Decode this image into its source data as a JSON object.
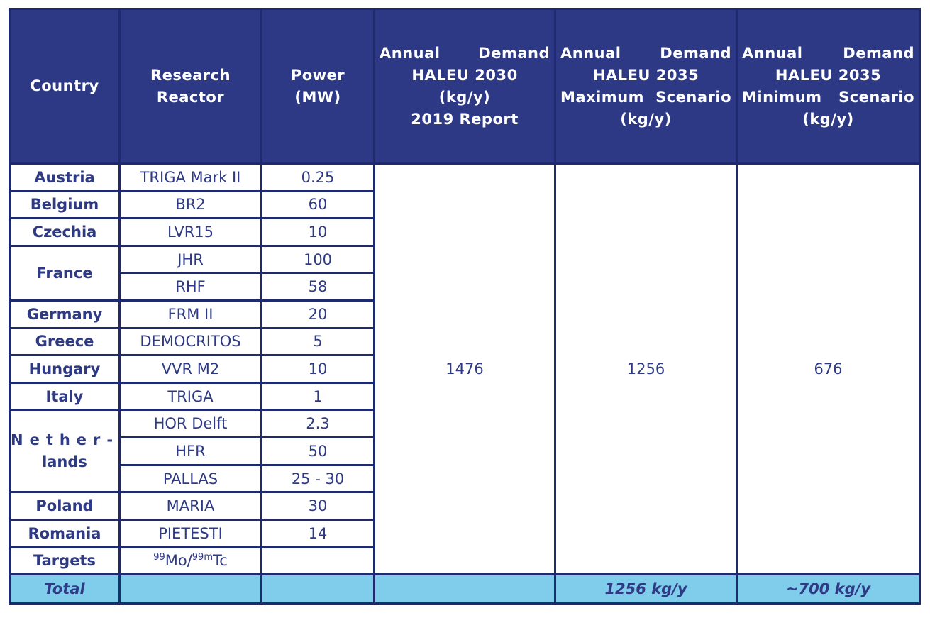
{
  "table": {
    "headers": {
      "country": "Country",
      "reactor": [
        "Research",
        "Reactor"
      ],
      "power": [
        "Power",
        "(MW)"
      ],
      "d2030": [
        "Annual Demand",
        "HALEU 2030",
        "(kg/y)",
        "2019 Report"
      ],
      "d2035max": [
        "Annual Demand",
        "HALEU 2035",
        "Maximum Scenario",
        "(kg/y)"
      ],
      "d2035min": [
        "Annual Demand",
        "HALEU 2035",
        "Minimum Scenario",
        "(kg/y)"
      ]
    },
    "rows": [
      {
        "country": "Austria",
        "reactor": "TRIGA Mark II",
        "power": "0.25"
      },
      {
        "country": "Belgium",
        "reactor": "BR2",
        "power": "60"
      },
      {
        "country": "Czechia",
        "reactor": "LVR15",
        "power": "10"
      },
      {
        "country": "France",
        "reactor": "JHR",
        "power": "100"
      },
      {
        "country": "",
        "reactor": "RHF",
        "power": "58"
      },
      {
        "country": "Germany",
        "reactor": "FRM II",
        "power": "20"
      },
      {
        "country": "Greece",
        "reactor": "DEMOCRITOS",
        "power": "5"
      },
      {
        "country": "Hungary",
        "reactor": "VVR M2",
        "power": "10"
      },
      {
        "country": "Italy",
        "reactor": "TRIGA",
        "power": "1"
      },
      {
        "country": "Nether-",
        "country_line2": "lands",
        "reactor": "HOR Delft",
        "power": "2.3"
      },
      {
        "country": "",
        "reactor": "HFR",
        "power": "50"
      },
      {
        "country": "",
        "reactor": "PALLAS",
        "power": "25 - 30"
      },
      {
        "country": "Poland",
        "reactor": "MARIA",
        "power": "30"
      },
      {
        "country": "Romania",
        "reactor": "PIETESTI",
        "power": "14"
      },
      {
        "country": "Targets",
        "reactor_sup1": "99",
        "reactor_mid": "Mo/",
        "reactor_sup2": "99m",
        "reactor_end": "Tc",
        "power": ""
      }
    ],
    "demand": {
      "d2030": "1476",
      "d2035max": "1256",
      "d2035min": "676"
    },
    "total": {
      "label": "Total",
      "d2035max": "1256 kg/y",
      "d2035min": "~700 kg/y"
    }
  },
  "colors": {
    "header_bg": "#2d3985",
    "total_bg": "#7fcceb",
    "text": "#2e3a84",
    "border": "#1f2a6e"
  }
}
